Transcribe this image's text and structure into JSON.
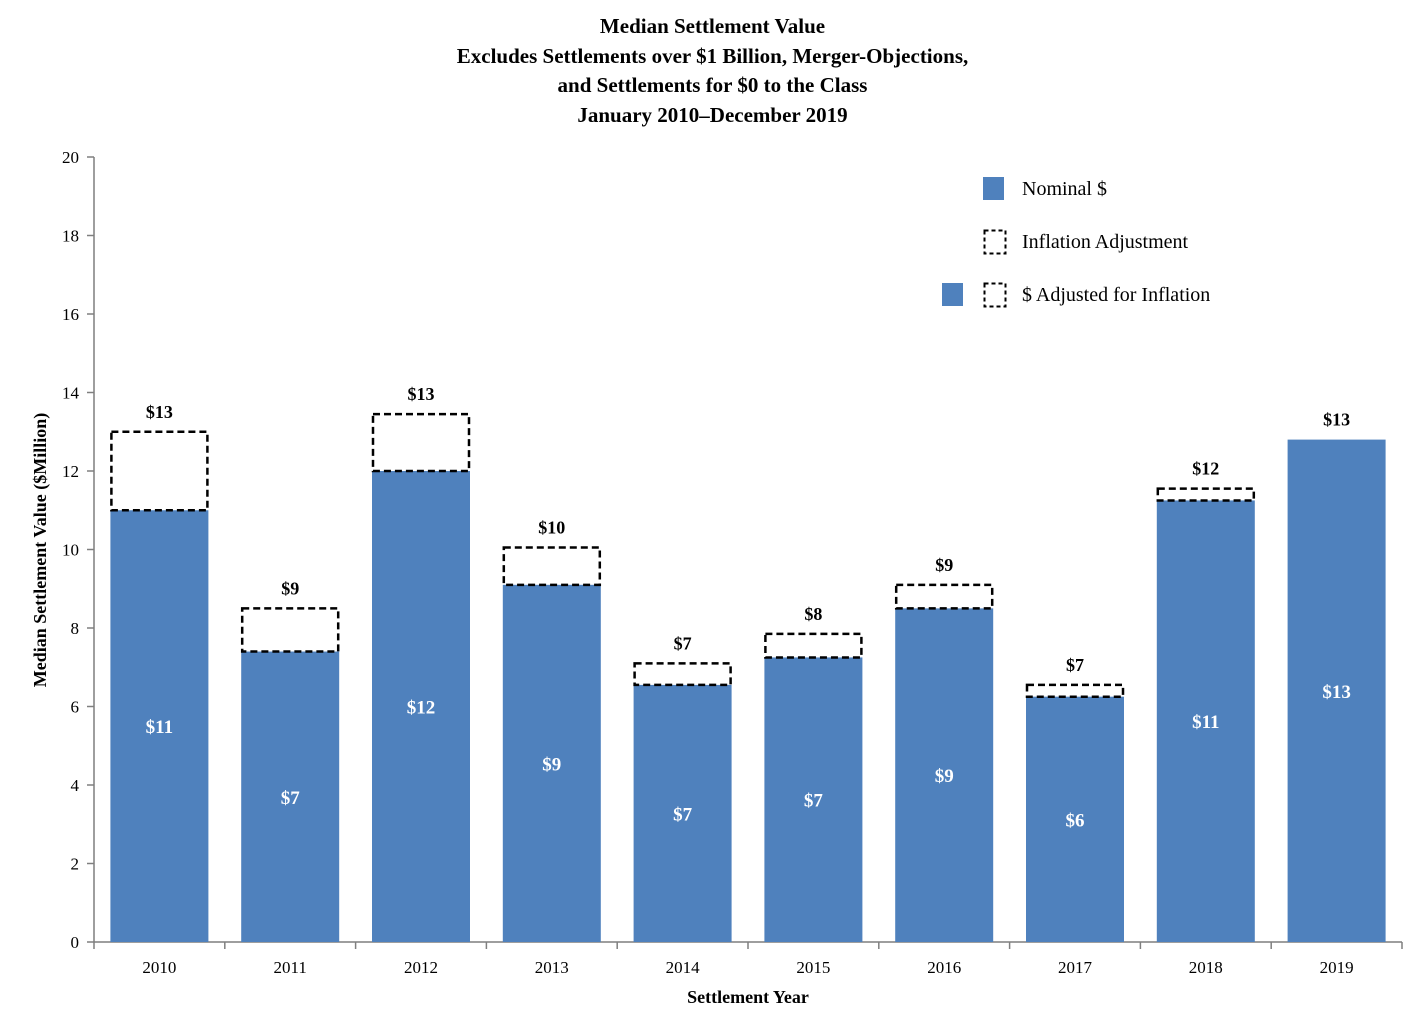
{
  "chart_data": {
    "type": "bar",
    "title_lines": [
      "Median Settlement Value",
      "Excludes Settlements over $1 Billion, Merger-Objections,",
      "and Settlements for $0 to the Class",
      "January 2010–December 2019"
    ],
    "xlabel": "Settlement Year",
    "ylabel": "Median Settlement Value ($Million)",
    "ylim": [
      0,
      20
    ],
    "yticks": [
      0,
      2,
      4,
      6,
      8,
      10,
      12,
      14,
      16,
      18,
      20
    ],
    "grid": false,
    "categories": [
      "2010",
      "2011",
      "2012",
      "2013",
      "2014",
      "2015",
      "2016",
      "2017",
      "2018",
      "2019"
    ],
    "series": [
      {
        "name": "Nominal $",
        "values": [
          11.0,
          7.4,
          12.0,
          9.1,
          6.55,
          7.25,
          8.5,
          6.25,
          11.25,
          12.8
        ]
      },
      {
        "name": "Inflation Adjustment",
        "values": [
          2.0,
          1.1,
          1.45,
          0.95,
          0.55,
          0.6,
          0.6,
          0.3,
          0.3,
          0.0
        ]
      }
    ],
    "nominal_labels": [
      "$11",
      "$7",
      "$12",
      "$9",
      "$7",
      "$7",
      "$9",
      "$6",
      "$11",
      "$13"
    ],
    "adjusted_labels": [
      "$13",
      "$9",
      "$13",
      "$10",
      "$7",
      "$8",
      "$9",
      "$7",
      "$12",
      "$13"
    ],
    "legend": {
      "position": "top-right",
      "entries": [
        "Nominal $",
        "Inflation Adjustment",
        "$ Adjusted for Inflation"
      ]
    },
    "colors": {
      "nominal": "#4f81bd",
      "adjustment_border": "#000000"
    }
  }
}
